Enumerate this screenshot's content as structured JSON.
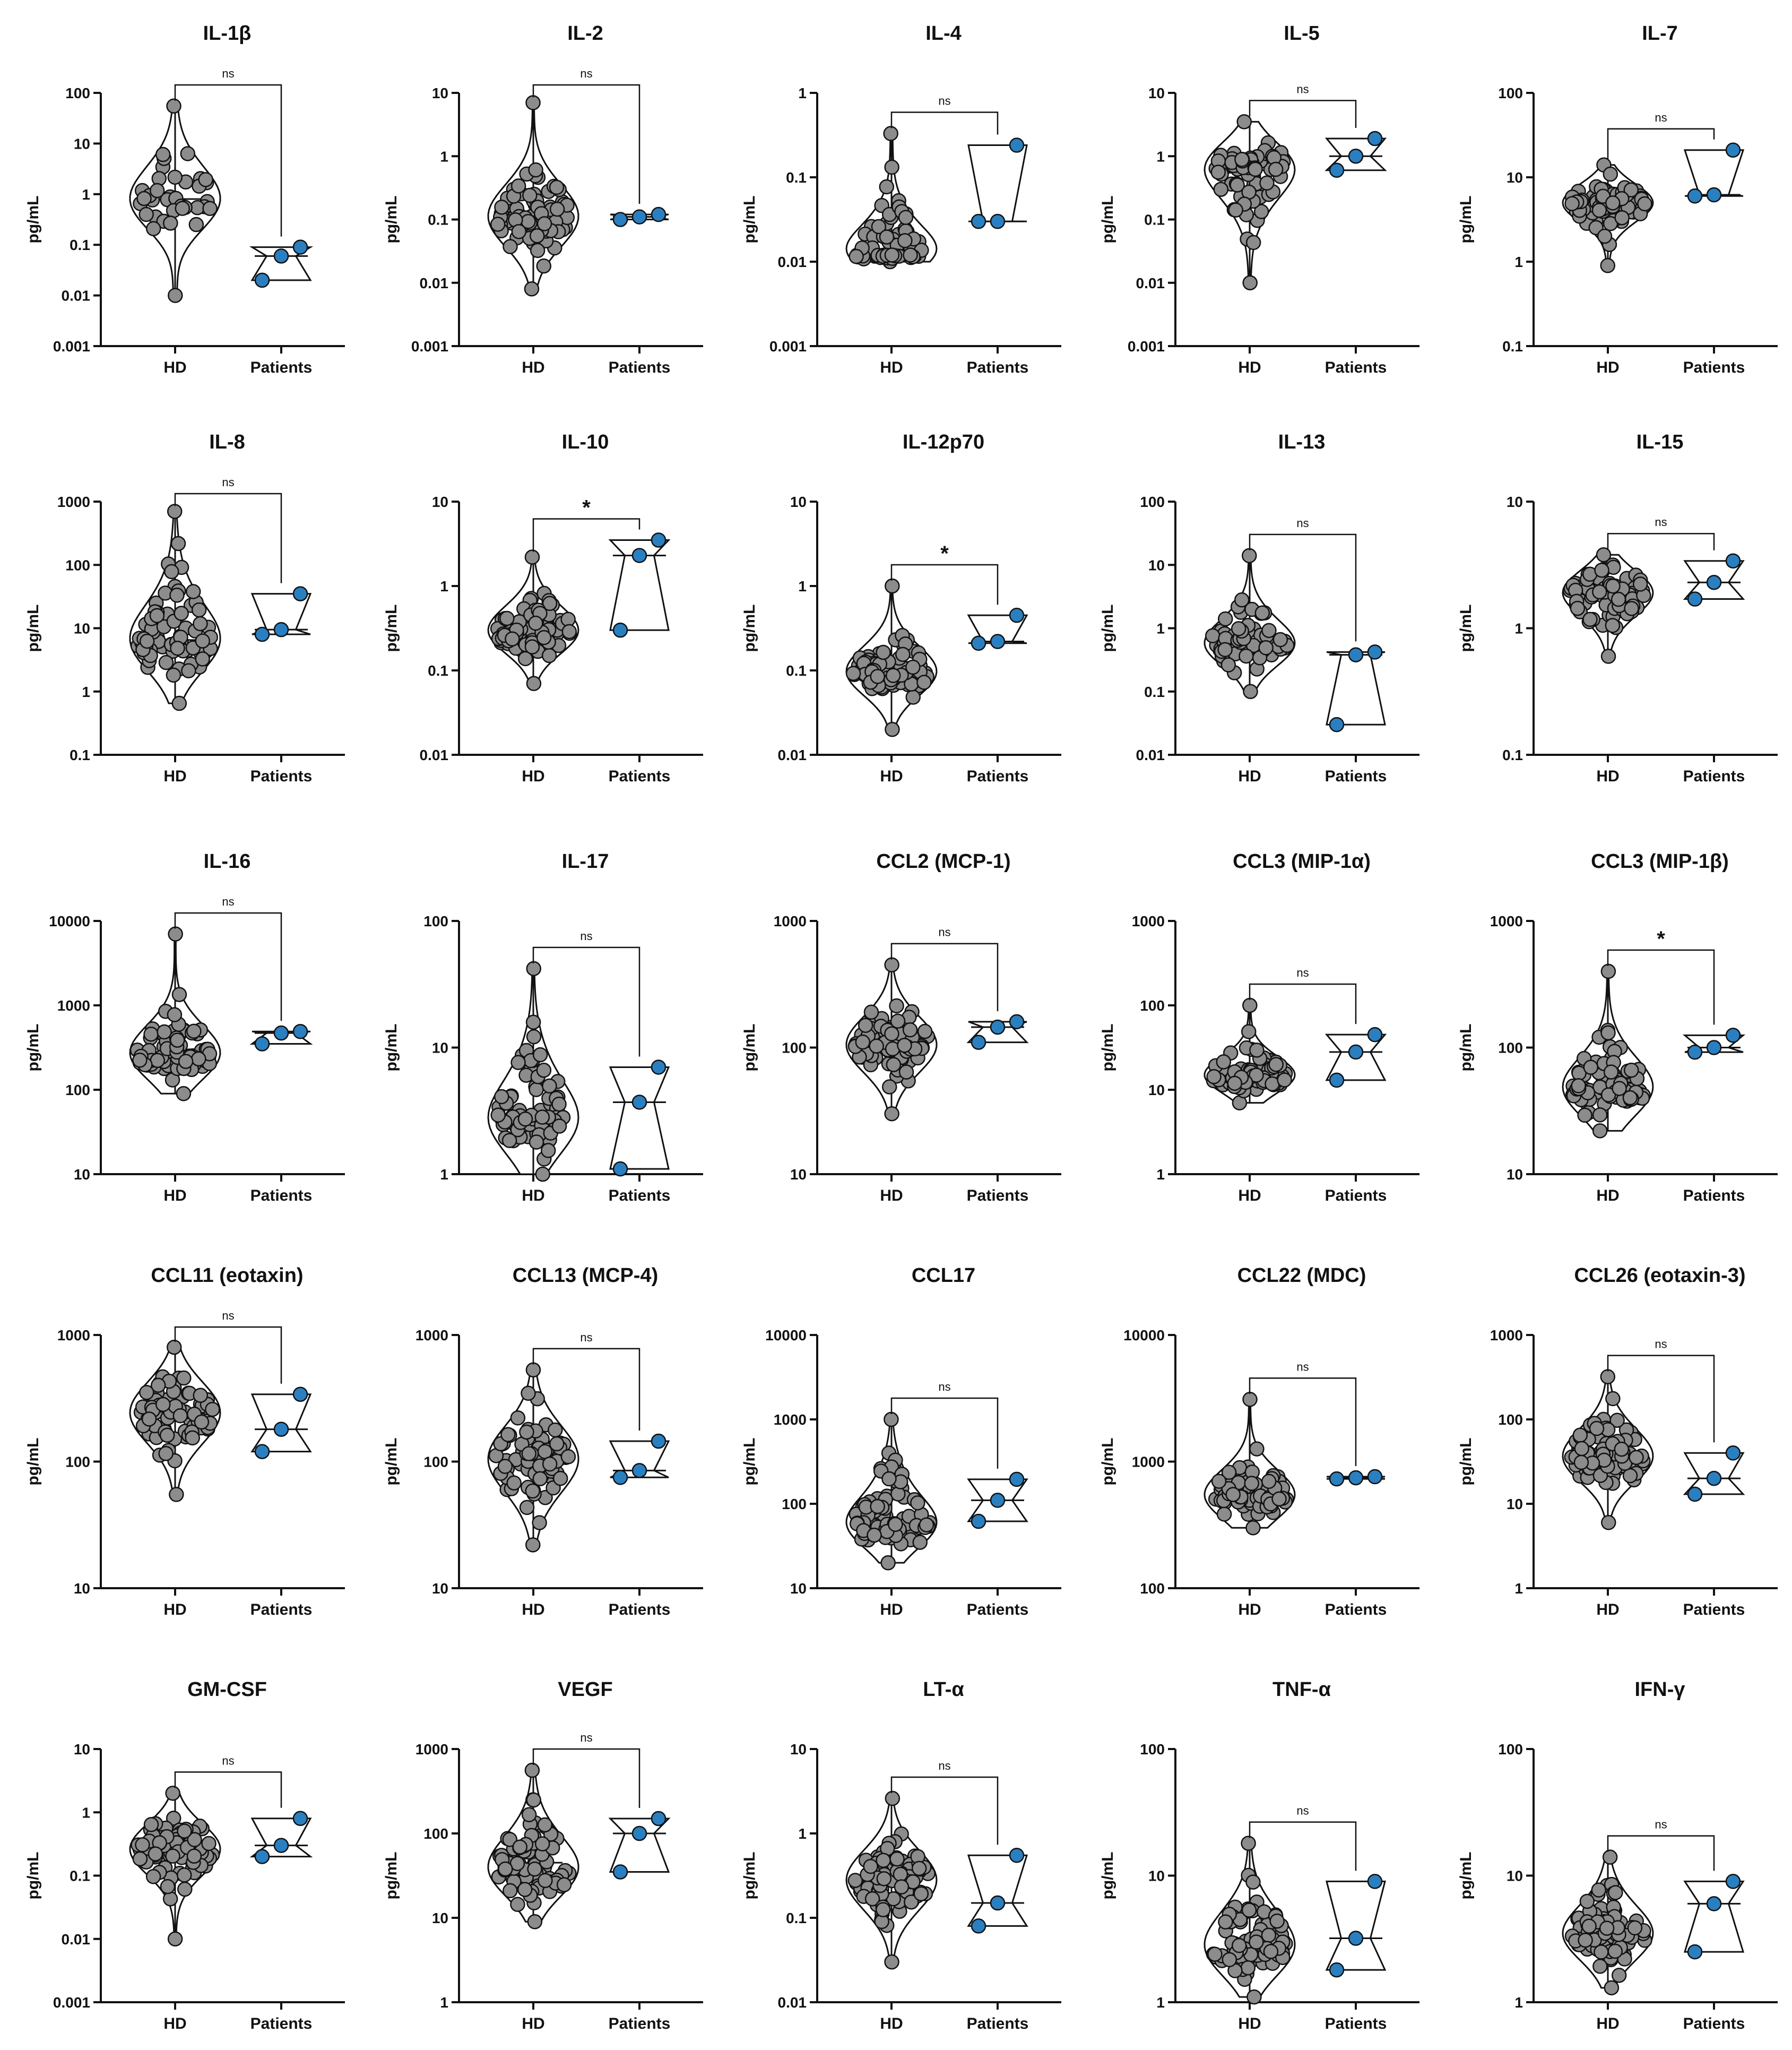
{
  "figure": {
    "y_axis_unit": "pg/mL",
    "groups": [
      "HD",
      "Patients"
    ]
  },
  "colors": {
    "hd_point": "#8c8c8c",
    "patient_point": "#2a7fc1",
    "line": "#111111"
  },
  "chart_data": [
    {
      "type": "violin-scatter",
      "title": "IL-1β",
      "ylabel": "pg/mL",
      "yscale": "log",
      "ylim": [
        0.001,
        100
      ],
      "yticks": [
        "0.001",
        "0.01",
        "0.1",
        "1",
        "10",
        "100"
      ],
      "categories": [
        "HD",
        "Patients"
      ],
      "significance": "ns",
      "hd_n": 36,
      "hd_range": [
        0.01,
        55
      ],
      "hd_median": 0.8,
      "patients": [
        0.02,
        0.06,
        0.09
      ]
    },
    {
      "type": "violin-scatter",
      "title": "IL-2",
      "ylabel": "pg/mL",
      "yscale": "log",
      "ylim": [
        0.001,
        10
      ],
      "yticks": [
        "0.001",
        "0.01",
        "0.1",
        "1",
        "10"
      ],
      "categories": [
        "HD",
        "Patients"
      ],
      "significance": "ns",
      "hd_n": 80,
      "hd_range": [
        0.008,
        7
      ],
      "hd_median": 0.12,
      "patients": [
        0.1,
        0.11,
        0.12
      ]
    },
    {
      "type": "violin-scatter",
      "title": "IL-4",
      "ylabel": "pg/mL",
      "yscale": "log",
      "ylim": [
        0.001,
        1
      ],
      "yticks": [
        "0.001",
        "0.01",
        "0.1",
        "1"
      ],
      "categories": [
        "HD",
        "Patients"
      ],
      "significance": "ns",
      "hd_n": 70,
      "hd_range": [
        0.01,
        0.33
      ],
      "hd_median": 0.012,
      "patients": [
        0.03,
        0.03,
        0.24
      ]
    },
    {
      "type": "violin-scatter",
      "title": "IL-5",
      "ylabel": "pg/mL",
      "yscale": "log",
      "ylim": [
        0.001,
        10
      ],
      "yticks": [
        "0.001",
        "0.01",
        "0.1",
        "1",
        "10"
      ],
      "categories": [
        "HD",
        "Patients"
      ],
      "significance": "ns",
      "hd_n": 75,
      "hd_range": [
        0.01,
        3.5
      ],
      "hd_median": 0.6,
      "patients": [
        0.6,
        1.0,
        1.9
      ]
    },
    {
      "type": "violin-scatter",
      "title": "IL-7",
      "ylabel": "pg/mL",
      "yscale": "log",
      "ylim": [
        0.1,
        100
      ],
      "yticks": [
        "0.1",
        "1",
        "10",
        "100"
      ],
      "categories": [
        "HD",
        "Patients"
      ],
      "significance": "ns",
      "hd_n": 80,
      "hd_range": [
        0.9,
        14
      ],
      "hd_median": 5.5,
      "patients": [
        6,
        6.2,
        21
      ]
    },
    {
      "type": "violin-scatter",
      "title": "IL-8",
      "ylabel": "pg/mL",
      "yscale": "log",
      "ylim": [
        0.1,
        1000
      ],
      "yticks": [
        "0.1",
        "1",
        "10",
        "100",
        "1000"
      ],
      "categories": [
        "HD",
        "Patients"
      ],
      "significance": "ns",
      "hd_n": 75,
      "hd_range": [
        0.65,
        700
      ],
      "hd_median": 6.5,
      "patients": [
        8,
        9.5,
        35
      ]
    },
    {
      "type": "violin-scatter",
      "title": "IL-10",
      "ylabel": "pg/mL",
      "yscale": "log",
      "ylim": [
        0.01,
        10
      ],
      "yticks": [
        "0.01",
        "0.1",
        "1",
        "10"
      ],
      "categories": [
        "HD",
        "Patients"
      ],
      "significance": "*",
      "hd_n": 80,
      "hd_range": [
        0.07,
        2.2
      ],
      "hd_median": 0.28,
      "patients": [
        0.3,
        2.3,
        3.5
      ]
    },
    {
      "type": "violin-scatter",
      "title": "IL-12p70",
      "ylabel": "pg/mL",
      "yscale": "log",
      "ylim": [
        0.01,
        10
      ],
      "yticks": [
        "0.01",
        "0.1",
        "1",
        "10"
      ],
      "categories": [
        "HD",
        "Patients"
      ],
      "significance": "*",
      "hd_n": 80,
      "hd_range": [
        0.02,
        1.0
      ],
      "hd_median": 0.1,
      "patients": [
        0.21,
        0.22,
        0.45
      ]
    },
    {
      "type": "violin-scatter",
      "title": "IL-13",
      "ylabel": "pg/mL",
      "yscale": "log",
      "ylim": [
        0.01,
        100
      ],
      "yticks": [
        "0.01",
        "0.1",
        "1",
        "10",
        "100"
      ],
      "categories": [
        "HD",
        "Patients"
      ],
      "significance": "ns",
      "hd_n": 65,
      "hd_range": [
        0.1,
        14
      ],
      "hd_median": 0.6,
      "patients": [
        0.03,
        0.38,
        0.42
      ]
    },
    {
      "type": "violin-scatter",
      "title": "IL-15",
      "ylabel": "pg/mL",
      "yscale": "log",
      "ylim": [
        0.1,
        10
      ],
      "yticks": [
        "0.1",
        "1",
        "10"
      ],
      "categories": [
        "HD",
        "Patients"
      ],
      "significance": "ns",
      "hd_n": 85,
      "hd_range": [
        0.6,
        3.8
      ],
      "hd_median": 2.0,
      "patients": [
        1.7,
        2.3,
        3.4
      ]
    },
    {
      "type": "violin-scatter",
      "title": "IL-16",
      "ylabel": "pg/mL",
      "yscale": "log",
      "ylim": [
        10,
        10000
      ],
      "yticks": [
        "10",
        "100",
        "1000",
        "10000"
      ],
      "categories": [
        "HD",
        "Patients"
      ],
      "significance": "ns",
      "hd_n": 80,
      "hd_range": [
        90,
        7000
      ],
      "hd_median": 250,
      "patients": [
        350,
        470,
        490
      ]
    },
    {
      "type": "violin-scatter",
      "title": "IL-17",
      "ylabel": "pg/mL",
      "yscale": "log",
      "ylim": [
        1,
        100
      ],
      "yticks": [
        "1",
        "10",
        "100"
      ],
      "categories": [
        "HD",
        "Patients"
      ],
      "significance": "ns",
      "hd_n": 80,
      "hd_range": [
        1.0,
        42
      ],
      "hd_median": 3.0,
      "patients": [
        1.1,
        3.7,
        7
      ]
    },
    {
      "type": "violin-scatter",
      "title": "CCL2 (MCP-1)",
      "ylabel": "pg/mL",
      "yscale": "log",
      "ylim": [
        10,
        1000
      ],
      "yticks": [
        "10",
        "100",
        "1000"
      ],
      "categories": [
        "HD",
        "Patients"
      ],
      "significance": "ns",
      "hd_n": 85,
      "hd_range": [
        30,
        450
      ],
      "hd_median": 110,
      "patients": [
        110,
        145,
        160
      ]
    },
    {
      "type": "violin-scatter",
      "title": "CCL3 (MIP-1α)",
      "ylabel": "pg/mL",
      "yscale": "log",
      "ylim": [
        1,
        1000
      ],
      "yticks": [
        "1",
        "10",
        "100",
        "1000"
      ],
      "categories": [
        "HD",
        "Patients"
      ],
      "significance": "ns",
      "hd_n": 80,
      "hd_range": [
        7,
        100
      ],
      "hd_median": 15,
      "patients": [
        13,
        28,
        45
      ]
    },
    {
      "type": "violin-scatter",
      "title": "CCL3 (MIP-1β)",
      "ylabel": "pg/mL",
      "yscale": "log",
      "ylim": [
        10,
        1000
      ],
      "yticks": [
        "10",
        "100",
        "1000"
      ],
      "categories": [
        "HD",
        "Patients"
      ],
      "significance": "*",
      "hd_n": 85,
      "hd_range": [
        22,
        400
      ],
      "hd_median": 50,
      "patients": [
        92,
        100,
        125
      ]
    },
    {
      "type": "violin-scatter",
      "title": "CCL11 (eotaxin)",
      "ylabel": "pg/mL",
      "yscale": "log",
      "ylim": [
        10,
        1000
      ],
      "yticks": [
        "10",
        "100",
        "1000"
      ],
      "categories": [
        "HD",
        "Patients"
      ],
      "significance": "ns",
      "hd_n": 75,
      "hd_range": [
        55,
        800
      ],
      "hd_median": 250,
      "patients": [
        120,
        180,
        340
      ]
    },
    {
      "type": "violin-scatter",
      "title": "CCL13 (MCP-4)",
      "ylabel": "pg/mL",
      "yscale": "log",
      "ylim": [
        10,
        1000
      ],
      "yticks": [
        "10",
        "100",
        "1000"
      ],
      "categories": [
        "HD",
        "Patients"
      ],
      "significance": "ns",
      "hd_n": 75,
      "hd_range": [
        22,
        530
      ],
      "hd_median": 110,
      "patients": [
        75,
        85,
        145
      ]
    },
    {
      "type": "violin-scatter",
      "title": "CCL17",
      "ylabel": "pg/mL",
      "yscale": "log",
      "ylim": [
        10,
        10000
      ],
      "yticks": [
        "10",
        "100",
        "1000",
        "10000"
      ],
      "categories": [
        "HD",
        "Patients"
      ],
      "significance": "ns",
      "hd_n": 80,
      "hd_range": [
        20,
        1000
      ],
      "hd_median": 60,
      "patients": [
        62,
        110,
        195
      ]
    },
    {
      "type": "violin-scatter",
      "title": "CCL22 (MDC)",
      "ylabel": "pg/mL",
      "yscale": "log",
      "ylim": [
        100,
        10000
      ],
      "yticks": [
        "100",
        "1000",
        "10000"
      ],
      "categories": [
        "HD",
        "Patients"
      ],
      "significance": "ns",
      "hd_n": 75,
      "hd_range": [
        300,
        3100
      ],
      "hd_median": 550,
      "patients": [
        730,
        745,
        760
      ]
    },
    {
      "type": "violin-scatter",
      "title": "CCL26 (eotaxin-3)",
      "ylabel": "pg/mL",
      "yscale": "log",
      "ylim": [
        1,
        1000
      ],
      "yticks": [
        "1",
        "10",
        "100",
        "1000"
      ],
      "categories": [
        "HD",
        "Patients"
      ],
      "significance": "ns",
      "hd_n": 85,
      "hd_range": [
        6,
        320
      ],
      "hd_median": 40,
      "patients": [
        13,
        20,
        40
      ]
    },
    {
      "type": "violin-scatter",
      "title": "GM-CSF",
      "ylabel": "pg/mL",
      "yscale": "log",
      "ylim": [
        0.001,
        10
      ],
      "yticks": [
        "0.001",
        "0.01",
        "0.1",
        "1",
        "10"
      ],
      "categories": [
        "HD",
        "Patients"
      ],
      "significance": "ns",
      "hd_n": 80,
      "hd_range": [
        0.01,
        2.0
      ],
      "hd_median": 0.3,
      "patients": [
        0.2,
        0.3,
        0.8
      ]
    },
    {
      "type": "violin-scatter",
      "title": "VEGF",
      "ylabel": "pg/mL",
      "yscale": "log",
      "ylim": [
        1,
        1000
      ],
      "yticks": [
        "1",
        "10",
        "100",
        "1000"
      ],
      "categories": [
        "HD",
        "Patients"
      ],
      "significance": "ns",
      "hd_n": 80,
      "hd_range": [
        9,
        560
      ],
      "hd_median": 45,
      "patients": [
        35,
        100,
        150
      ]
    },
    {
      "type": "violin-scatter",
      "title": "LT-α",
      "ylabel": "pg/mL",
      "yscale": "log",
      "ylim": [
        0.01,
        10
      ],
      "yticks": [
        "0.01",
        "0.1",
        "1",
        "10"
      ],
      "categories": [
        "HD",
        "Patients"
      ],
      "significance": "ns",
      "hd_n": 85,
      "hd_range": [
        0.03,
        2.6
      ],
      "hd_median": 0.3,
      "patients": [
        0.08,
        0.15,
        0.55
      ]
    },
    {
      "type": "violin-scatter",
      "title": "TNF-α",
      "ylabel": "pg/mL",
      "yscale": "log",
      "ylim": [
        1,
        100
      ],
      "yticks": [
        "1",
        "10",
        "100"
      ],
      "categories": [
        "HD",
        "Patients"
      ],
      "significance": "ns",
      "hd_n": 80,
      "hd_range": [
        1.1,
        18
      ],
      "hd_median": 2.5,
      "patients": [
        1.8,
        3.2,
        9
      ]
    },
    {
      "type": "violin-scatter",
      "title": "IFN-γ",
      "ylabel": "pg/mL",
      "yscale": "log",
      "ylim": [
        1,
        100
      ],
      "yticks": [
        "1",
        "10",
        "100"
      ],
      "categories": [
        "HD",
        "Patients"
      ],
      "significance": "ns",
      "hd_n": 80,
      "hd_range": [
        1.3,
        14
      ],
      "hd_median": 3.5,
      "patients": [
        2.5,
        6,
        9
      ]
    }
  ]
}
